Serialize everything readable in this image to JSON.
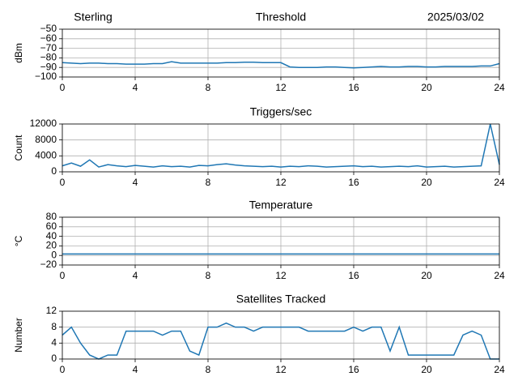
{
  "header": {
    "left": "Sterling",
    "right": "2025/03/02"
  },
  "chart_data": [
    {
      "type": "line",
      "title": "Threshold",
      "ylabel": "dBm",
      "color": "#1f77b4",
      "grid": true,
      "xlim": [
        0,
        24
      ],
      "xticks": [
        0,
        4,
        8,
        12,
        16,
        20,
        24
      ],
      "ylim": [
        -100,
        -50
      ],
      "yticks": [
        {
          "value": -50,
          "label": "−50"
        },
        {
          "value": -60,
          "label": "−60"
        },
        {
          "value": -70,
          "label": "−70"
        },
        {
          "value": -80,
          "label": "−80"
        },
        {
          "value": -90,
          "label": "−90"
        },
        {
          "value": -100,
          "label": "−100"
        }
      ],
      "x": [
        0,
        0.5,
        1,
        1.5,
        2,
        2.5,
        3,
        3.5,
        4,
        4.5,
        5,
        5.5,
        6,
        6.5,
        7,
        7.5,
        8,
        8.5,
        9,
        9.5,
        10,
        10.5,
        11,
        11.5,
        12,
        12.5,
        13,
        13.5,
        14,
        14.5,
        15,
        15.5,
        16,
        16.5,
        17,
        17.5,
        18,
        18.5,
        19,
        19.5,
        20,
        20.5,
        21,
        21.5,
        22,
        22.5,
        23,
        23.5,
        24
      ],
      "values": [
        -85,
        -85.5,
        -86,
        -85.5,
        -85.5,
        -86,
        -86,
        -86.5,
        -86.5,
        -86.5,
        -86,
        -86,
        -84,
        -85.5,
        -85.5,
        -85.5,
        -85.5,
        -85.5,
        -85,
        -85,
        -84.5,
        -84.5,
        -85,
        -85,
        -85,
        -89.5,
        -90,
        -90,
        -90,
        -89.5,
        -89.5,
        -90,
        -90.5,
        -90,
        -89.5,
        -89,
        -89.5,
        -89.5,
        -89,
        -89,
        -89.5,
        -89.5,
        -89,
        -89,
        -89,
        -89,
        -88.5,
        -88.5,
        -86
      ]
    },
    {
      "type": "line",
      "title": "Triggers/sec",
      "ylabel": "Count",
      "color": "#1f77b4",
      "grid": true,
      "xlim": [
        0,
        24
      ],
      "xticks": [
        0,
        4,
        8,
        12,
        16,
        20,
        24
      ],
      "ylim": [
        0,
        12000
      ],
      "yticks": [
        0,
        4000,
        8000,
        12000
      ],
      "x": [
        0,
        0.5,
        1,
        1.5,
        2,
        2.5,
        3,
        3.5,
        4,
        4.5,
        5,
        5.5,
        6,
        6.5,
        7,
        7.5,
        8,
        8.5,
        9,
        9.5,
        10,
        10.5,
        11,
        11.5,
        12,
        12.5,
        13,
        13.5,
        14,
        14.5,
        15,
        15.5,
        16,
        16.5,
        17,
        17.5,
        18,
        18.5,
        19,
        19.5,
        20,
        20.5,
        21,
        21.5,
        22,
        22.5,
        23,
        23.5,
        24
      ],
      "values": [
        1500,
        2200,
        1400,
        3000,
        1200,
        1800,
        1500,
        1300,
        1600,
        1400,
        1200,
        1500,
        1300,
        1400,
        1200,
        1600,
        1500,
        1800,
        2000,
        1700,
        1500,
        1400,
        1300,
        1400,
        1200,
        1400,
        1300,
        1500,
        1400,
        1200,
        1300,
        1400,
        1500,
        1300,
        1400,
        1200,
        1300,
        1400,
        1300,
        1500,
        1200,
        1300,
        1400,
        1200,
        1300,
        1400,
        1500,
        12000,
        1800
      ]
    },
    {
      "type": "line",
      "title": "Temperature",
      "ylabel": "°C",
      "color": "#1f77b4",
      "grid": true,
      "xlim": [
        0,
        24
      ],
      "xticks": [
        0,
        4,
        8,
        12,
        16,
        20,
        24
      ],
      "ylim": [
        -20,
        80
      ],
      "yticks": [
        {
          "value": -20,
          "label": "−20"
        },
        0,
        20,
        40,
        60,
        80
      ],
      "x": [
        0,
        0.5,
        1,
        1.5,
        2,
        2.5,
        3,
        3.5,
        4,
        4.5,
        5,
        5.5,
        6,
        6.5,
        7,
        7.5,
        8,
        8.5,
        9,
        9.5,
        10,
        10.5,
        11,
        11.5,
        12,
        12.5,
        13,
        13.5,
        14,
        14.5,
        15,
        15.5,
        16,
        16.5,
        17,
        17.5,
        18,
        18.5,
        19,
        19.5,
        20,
        20.5,
        21,
        21.5,
        22,
        22.5,
        23,
        23.5,
        24
      ],
      "values": [
        3,
        3,
        3,
        3,
        3,
        3,
        3,
        3,
        3,
        3,
        3,
        3,
        3,
        3,
        3,
        3,
        3,
        3,
        3,
        3,
        3,
        3,
        3,
        3,
        3,
        3,
        3,
        3,
        3,
        3,
        3,
        3,
        3,
        3,
        3,
        3,
        3,
        3,
        3,
        3,
        3,
        3,
        3,
        3,
        3,
        3,
        3,
        3,
        3
      ]
    },
    {
      "type": "line",
      "title": "Satellites Tracked",
      "ylabel": "Number",
      "color": "#1f77b4",
      "grid": true,
      "xlim": [
        0,
        24
      ],
      "xticks": [
        0,
        4,
        8,
        12,
        16,
        20,
        24
      ],
      "ylim": [
        0,
        12
      ],
      "yticks": [
        0,
        4,
        8,
        12
      ],
      "x": [
        0,
        0.5,
        1,
        1.5,
        2,
        2.5,
        3,
        3.5,
        4,
        4.5,
        5,
        5.5,
        6,
        6.5,
        7,
        7.5,
        8,
        8.5,
        9,
        9.5,
        10,
        10.5,
        11,
        11.5,
        12,
        12.5,
        13,
        13.5,
        14,
        14.5,
        15,
        15.5,
        16,
        16.5,
        17,
        17.5,
        18,
        18.5,
        19,
        19.5,
        20,
        20.5,
        21,
        21.5,
        22,
        22.5,
        23,
        23.5,
        24
      ],
      "values": [
        6,
        8,
        4,
        1,
        0,
        1,
        1,
        7,
        7,
        7,
        7,
        6,
        7,
        7,
        2,
        1,
        8,
        8,
        9,
        8,
        8,
        7,
        8,
        8,
        8,
        8,
        8,
        7,
        7,
        7,
        7,
        7,
        8,
        7,
        8,
        8,
        2,
        8,
        1,
        1,
        1,
        1,
        1,
        1,
        6,
        7,
        6,
        0,
        0
      ]
    }
  ]
}
